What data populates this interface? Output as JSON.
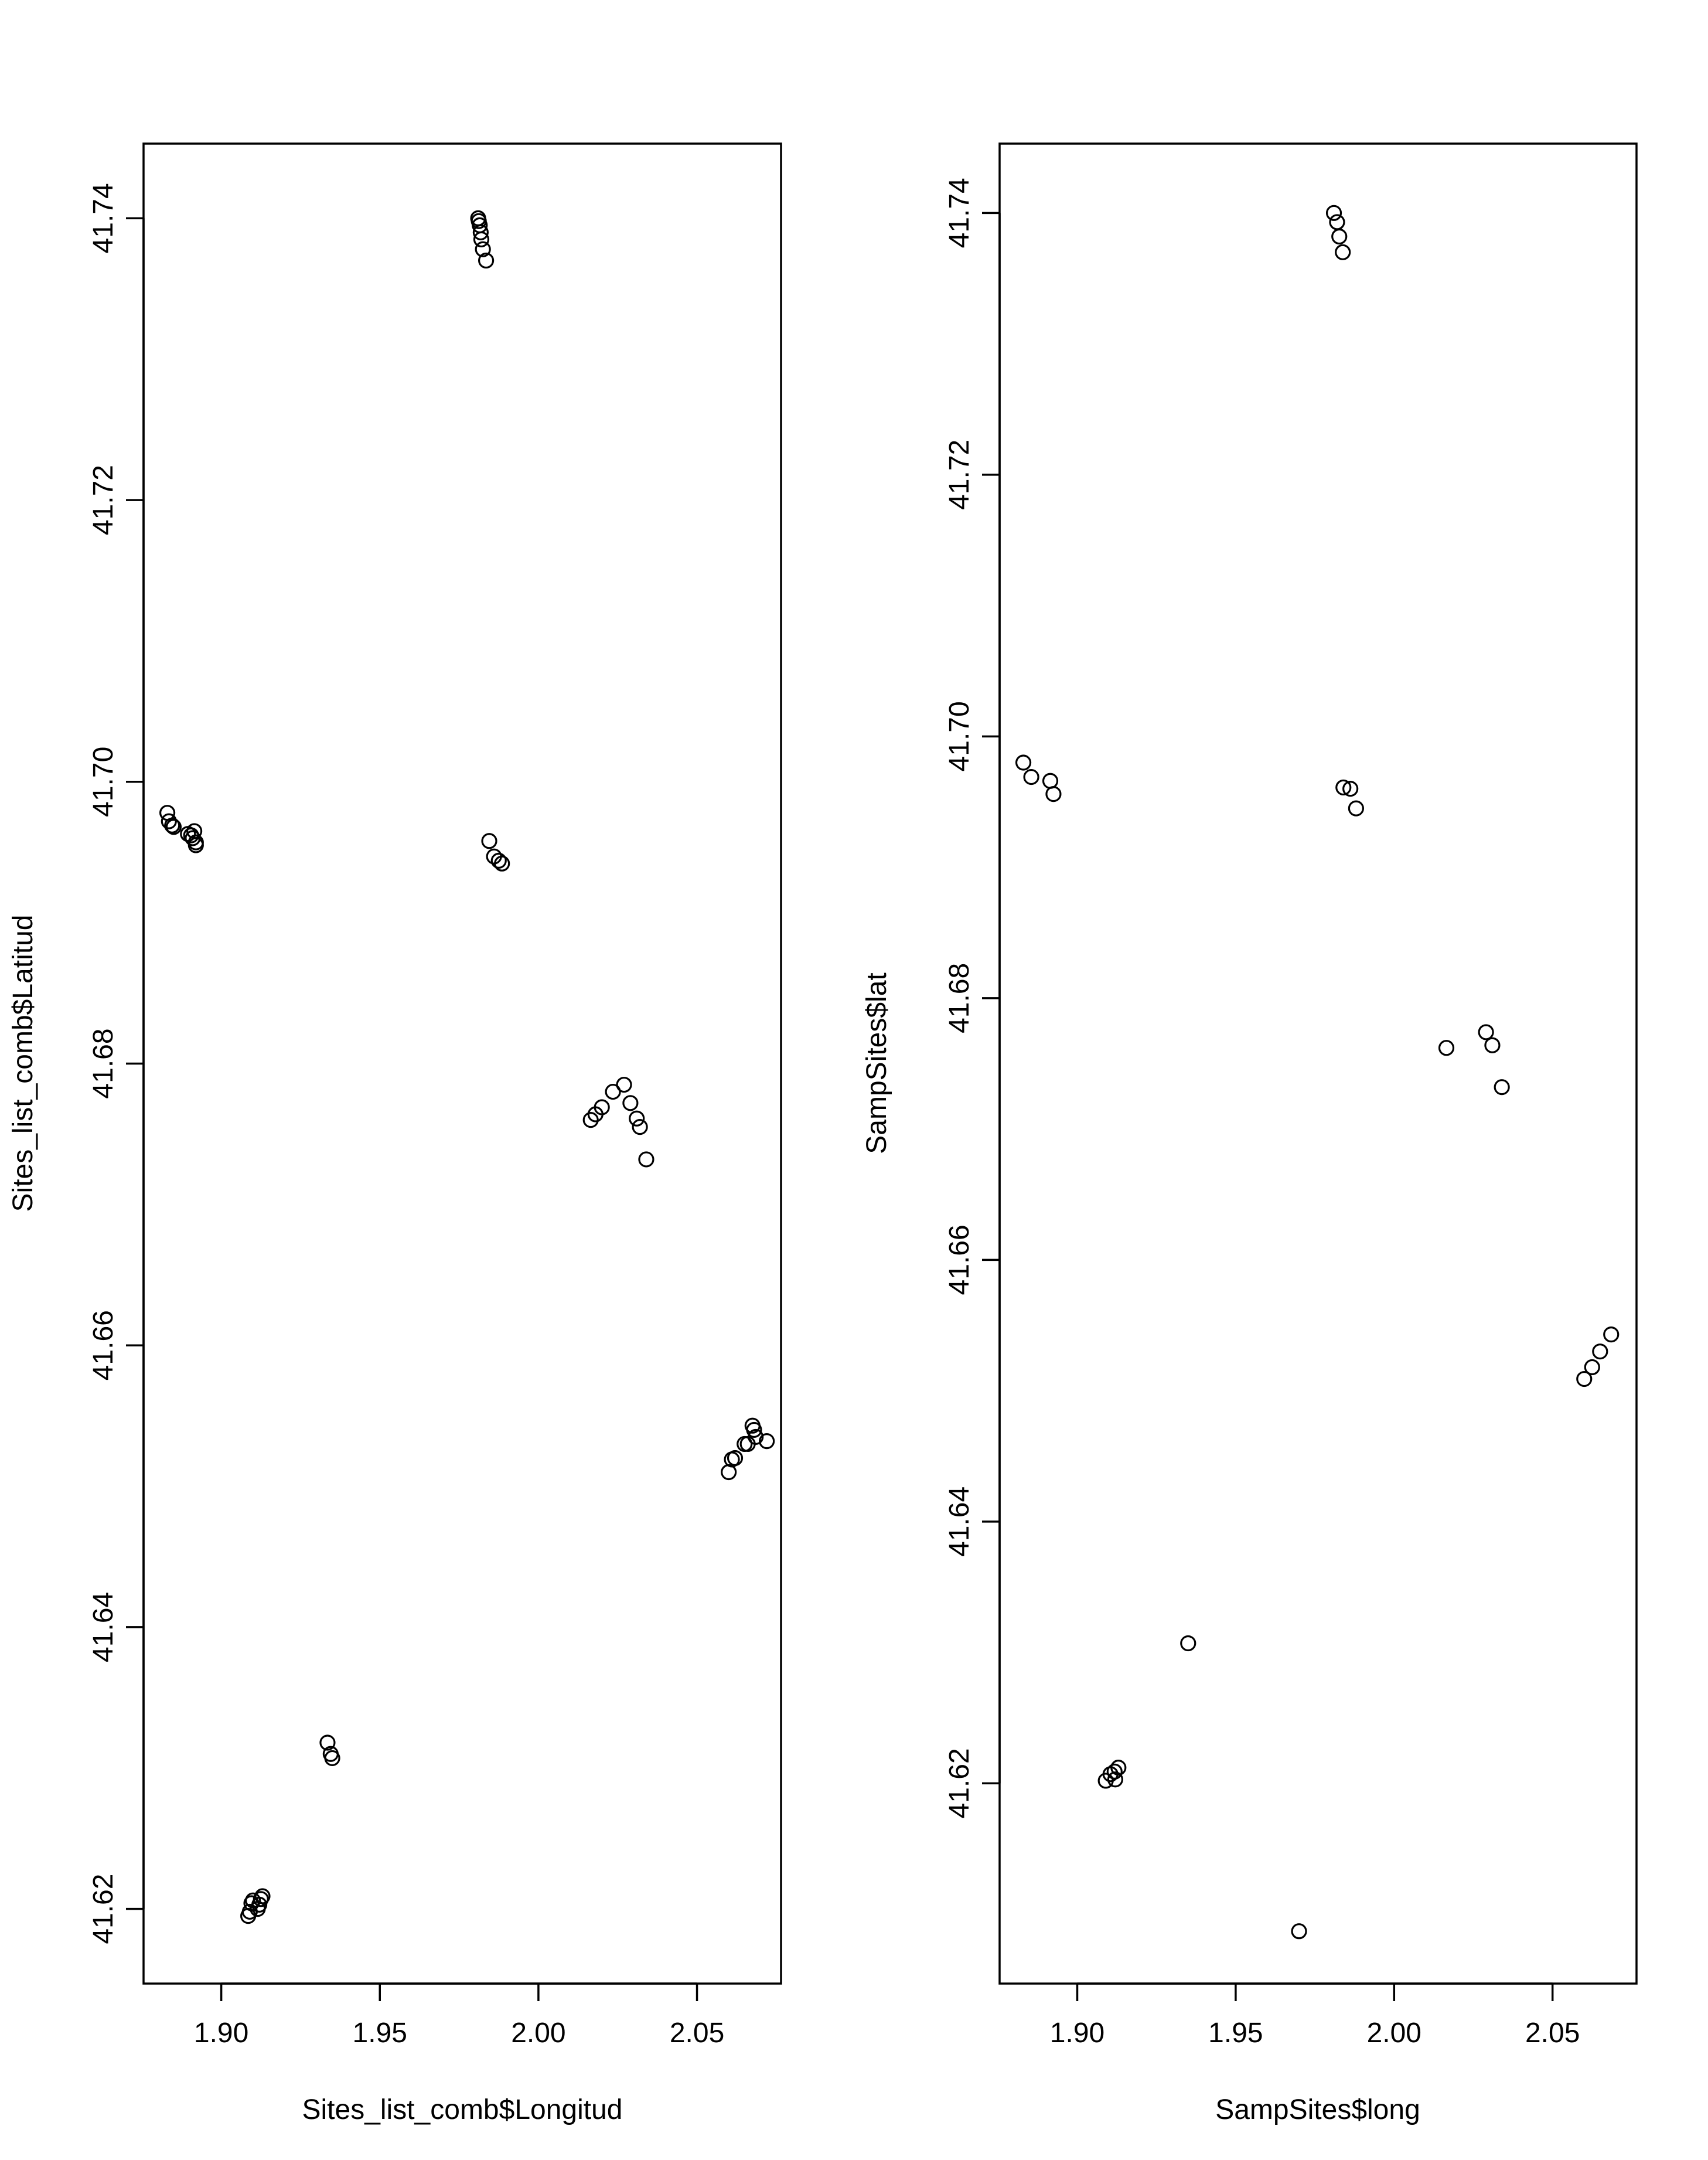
{
  "chart_data": [
    {
      "type": "scatter",
      "title": "",
      "xlabel": "Sites_list_comb$Longitud",
      "ylabel": "Sites_list_comb$Latitud",
      "xlim": [
        1.8755,
        2.0765
      ],
      "ylim": [
        41.6147,
        41.7453
      ],
      "xticks": [
        "1.90",
        "1.95",
        "2.00",
        "2.05"
      ],
      "xtick_values": [
        1.9,
        1.95,
        2.0,
        2.05
      ],
      "yticks": [
        "41.62",
        "41.64",
        "41.66",
        "41.68",
        "41.70",
        "41.72",
        "41.74"
      ],
      "ytick_values": [
        41.62,
        41.64,
        41.66,
        41.68,
        41.7,
        41.72,
        41.74
      ],
      "marker": "open-circle",
      "points": [
        {
          "x": 1.883,
          "y": 41.6978
        },
        {
          "x": 1.8835,
          "y": 41.6972
        },
        {
          "x": 1.8845,
          "y": 41.6969
        },
        {
          "x": 1.885,
          "y": 41.6968
        },
        {
          "x": 1.8895,
          "y": 41.6963
        },
        {
          "x": 1.8905,
          "y": 41.6962
        },
        {
          "x": 1.8915,
          "y": 41.6965
        },
        {
          "x": 1.891,
          "y": 41.696
        },
        {
          "x": 1.892,
          "y": 41.6957
        },
        {
          "x": 1.892,
          "y": 41.6955
        },
        {
          "x": 1.981,
          "y": 41.74
        },
        {
          "x": 1.9812,
          "y": 41.7398
        },
        {
          "x": 1.9815,
          "y": 41.7395
        },
        {
          "x": 1.9818,
          "y": 41.739
        },
        {
          "x": 1.982,
          "y": 41.7385
        },
        {
          "x": 1.9825,
          "y": 41.7378
        },
        {
          "x": 1.9835,
          "y": 41.737
        },
        {
          "x": 1.9845,
          "y": 41.6958
        },
        {
          "x": 1.986,
          "y": 41.6947
        },
        {
          "x": 1.9875,
          "y": 41.6944
        },
        {
          "x": 1.9885,
          "y": 41.6942
        },
        {
          "x": 2.0165,
          "y": 41.676
        },
        {
          "x": 2.018,
          "y": 41.6764
        },
        {
          "x": 2.02,
          "y": 41.6769
        },
        {
          "x": 2.0235,
          "y": 41.678
        },
        {
          "x": 2.027,
          "y": 41.6785
        },
        {
          "x": 2.029,
          "y": 41.6772
        },
        {
          "x": 2.031,
          "y": 41.6761
        },
        {
          "x": 2.032,
          "y": 41.6755
        },
        {
          "x": 2.034,
          "y": 41.6732
        },
        {
          "x": 2.06,
          "y": 41.651
        },
        {
          "x": 2.061,
          "y": 41.6519
        },
        {
          "x": 2.062,
          "y": 41.652
        },
        {
          "x": 2.065,
          "y": 41.653
        },
        {
          "x": 2.066,
          "y": 41.653
        },
        {
          "x": 2.0675,
          "y": 41.6543
        },
        {
          "x": 2.068,
          "y": 41.654
        },
        {
          "x": 2.0685,
          "y": 41.6535
        },
        {
          "x": 2.072,
          "y": 41.6532
        },
        {
          "x": 1.9335,
          "y": 41.6318
        },
        {
          "x": 1.9345,
          "y": 41.631
        },
        {
          "x": 1.935,
          "y": 41.6307
        },
        {
          "x": 1.9085,
          "y": 41.6195
        },
        {
          "x": 1.909,
          "y": 41.6198
        },
        {
          "x": 1.9095,
          "y": 41.6204
        },
        {
          "x": 1.91,
          "y": 41.6206
        },
        {
          "x": 1.9115,
          "y": 41.62
        },
        {
          "x": 1.912,
          "y": 41.6203
        },
        {
          "x": 1.9125,
          "y": 41.6207
        },
        {
          "x": 1.913,
          "y": 41.6209
        }
      ]
    },
    {
      "type": "scatter",
      "title": "",
      "xlabel": "SampSites$long",
      "ylabel": "SampSites$lat",
      "xlim": [
        1.8755,
        2.0765
      ],
      "ylim": [
        41.6047,
        41.7453
      ],
      "xticks": [
        "1.90",
        "1.95",
        "2.00",
        "2.05"
      ],
      "xtick_values": [
        1.9,
        1.95,
        2.0,
        2.05
      ],
      "yticks": [
        "41.62",
        "41.64",
        "41.66",
        "41.68",
        "41.70",
        "41.72",
        "41.74"
      ],
      "ytick_values": [
        41.62,
        41.64,
        41.66,
        41.68,
        41.7,
        41.72,
        41.74
      ],
      "marker": "open-circle",
      "points": [
        {
          "x": 1.883,
          "y": 41.698
        },
        {
          "x": 1.8855,
          "y": 41.6969
        },
        {
          "x": 1.8915,
          "y": 41.6966
        },
        {
          "x": 1.8925,
          "y": 41.6956
        },
        {
          "x": 1.981,
          "y": 41.74
        },
        {
          "x": 1.982,
          "y": 41.7393
        },
        {
          "x": 1.9827,
          "y": 41.7382
        },
        {
          "x": 1.9838,
          "y": 41.737
        },
        {
          "x": 1.984,
          "y": 41.6961
        },
        {
          "x": 1.9862,
          "y": 41.696
        },
        {
          "x": 1.988,
          "y": 41.6945
        },
        {
          "x": 2.0165,
          "y": 41.6762
        },
        {
          "x": 2.029,
          "y": 41.6774
        },
        {
          "x": 2.031,
          "y": 41.6764
        },
        {
          "x": 2.034,
          "y": 41.6732
        },
        {
          "x": 2.06,
          "y": 41.6509
        },
        {
          "x": 2.0625,
          "y": 41.6518
        },
        {
          "x": 2.065,
          "y": 41.653
        },
        {
          "x": 2.0685,
          "y": 41.6543
        },
        {
          "x": 1.935,
          "y": 41.6307
        },
        {
          "x": 1.909,
          "y": 41.6202
        },
        {
          "x": 1.9105,
          "y": 41.6207
        },
        {
          "x": 1.9118,
          "y": 41.6209
        },
        {
          "x": 1.913,
          "y": 41.6212
        },
        {
          "x": 1.912,
          "y": 41.6203
        },
        {
          "x": 1.97,
          "y": 41.6087
        }
      ]
    }
  ]
}
